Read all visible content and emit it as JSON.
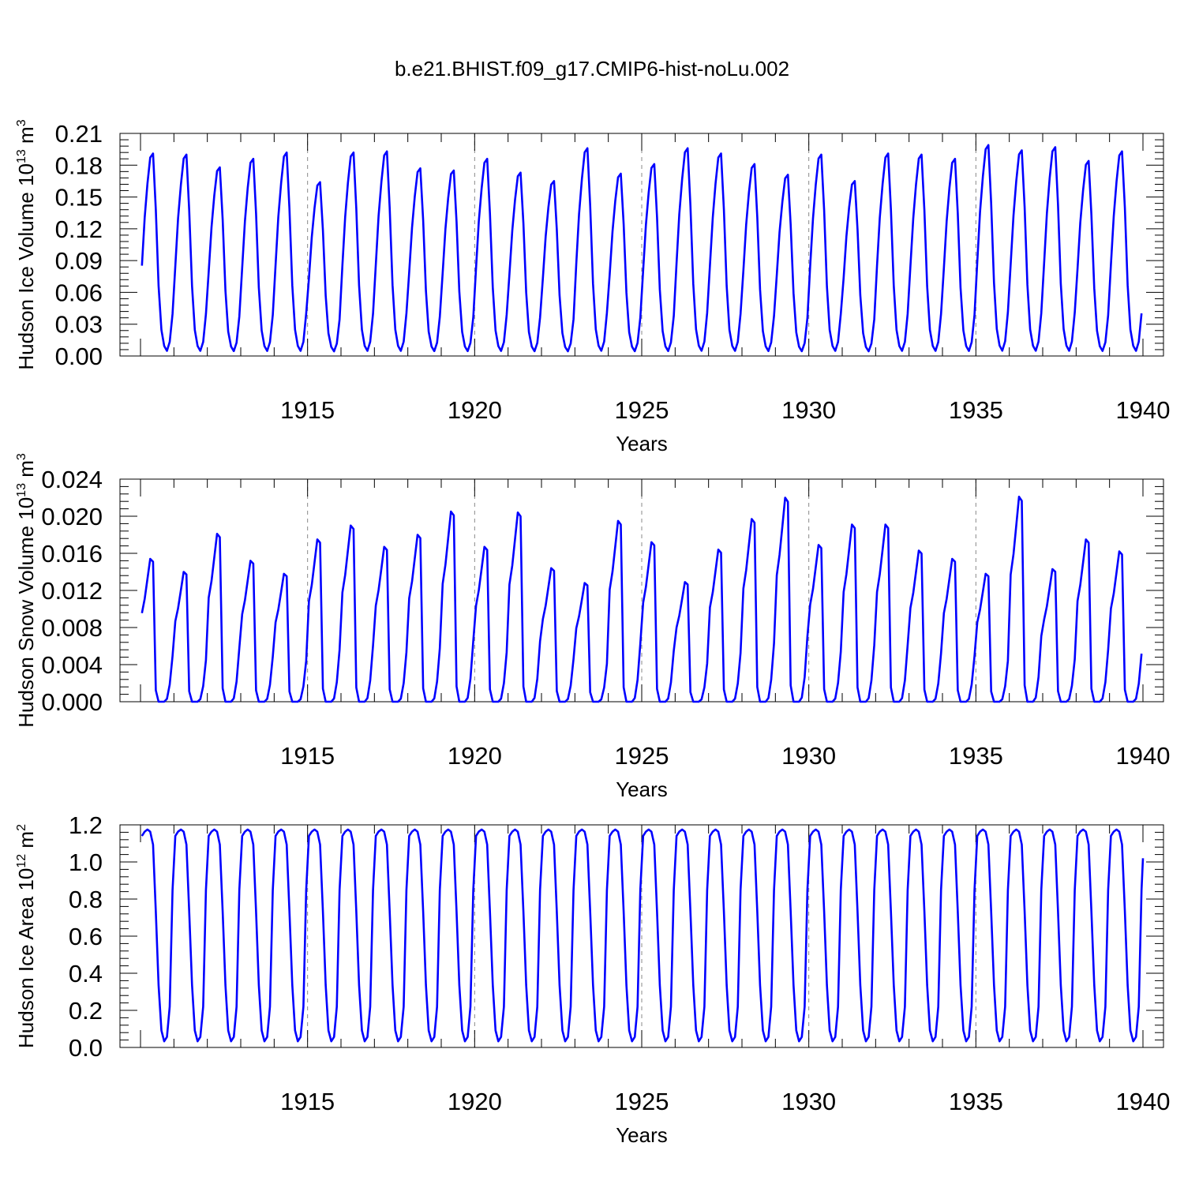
{
  "title": "b.e21.BHIST.f09_g17.CMIP6-hist-noLu.002",
  "colors": {
    "line": "#0000ff",
    "axes": "#000000",
    "grid": "#888888"
  },
  "chart_data": [
    {
      "type": "line",
      "ylabel": {
        "main": "Hudson Ice Volume 10",
        "exp": "13",
        "unit": " m",
        "unit_exp": "3"
      },
      "xlabel": "Years",
      "xlim": [
        1910.0,
        1940.0
      ],
      "ylim": [
        0.0,
        0.21
      ],
      "yticks": [
        "0.00",
        "0.03",
        "0.06",
        "0.09",
        "0.12",
        "0.15",
        "0.18",
        "0.21"
      ],
      "xticks": [
        "1915",
        "1920",
        "1925",
        "1930",
        "1935",
        "1940"
      ],
      "grid_x": "dashed verticals at 1915, 1920, 1925, 1930, 1935",
      "annual_minimum": 0.002,
      "annual_peaks": [
        0.191,
        0.19,
        0.178,
        0.186,
        0.192,
        0.164,
        0.192,
        0.193,
        0.177,
        0.175,
        0.186,
        0.173,
        0.165,
        0.196,
        0.172,
        0.181,
        0.196,
        0.191,
        0.181,
        0.171,
        0.19,
        0.165,
        0.191,
        0.19,
        0.186,
        0.199,
        0.194,
        0.197,
        0.184,
        0.193
      ],
      "series": [
        {
          "values_note": "monthly seasonal cycle 1910-1940"
        }
      ]
    },
    {
      "type": "line",
      "ylabel": {
        "main": "Hudson Snow Volume 10",
        "exp": "13",
        "unit": " m",
        "unit_exp": "3"
      },
      "xlabel": "Years",
      "xlim": [
        1910.0,
        1940.0
      ],
      "ylim": [
        0.0,
        0.024
      ],
      "yticks": [
        "0.000",
        "0.004",
        "0.008",
        "0.012",
        "0.016",
        "0.020",
        "0.024"
      ],
      "xticks": [
        "1915",
        "1920",
        "1925",
        "1930",
        "1935",
        "1940"
      ],
      "grid_x": "dashed verticals at 1915, 1920, 1925, 1930, 1935",
      "annual_minimum": 0.0,
      "annual_peaks": [
        0.0154,
        0.014,
        0.0181,
        0.0152,
        0.0138,
        0.0175,
        0.019,
        0.0167,
        0.018,
        0.0205,
        0.0167,
        0.0204,
        0.0144,
        0.0128,
        0.0195,
        0.0172,
        0.0129,
        0.0164,
        0.0197,
        0.022,
        0.0169,
        0.0191,
        0.0191,
        0.0163,
        0.0154,
        0.0138,
        0.0221,
        0.0143,
        0.0175,
        0.0162
      ]
    },
    {
      "type": "line",
      "ylabel": {
        "main": "Hudson Ice Area 10",
        "exp": "12",
        "unit": " m",
        "unit_exp": "2"
      },
      "xlabel": "Years",
      "xlim": [
        1910.0,
        1940.0
      ],
      "ylim": [
        0.0,
        1.2
      ],
      "yticks": [
        "0.0",
        "0.2",
        "0.4",
        "0.6",
        "0.8",
        "1.0",
        "1.2"
      ],
      "xticks": [
        "1915",
        "1920",
        "1925",
        "1930",
        "1935",
        "1940"
      ],
      "grid_x": "dashed verticals at 1915, 1920, 1925, 1930, 1935",
      "annual_minimum": 0.01,
      "annual_peaks": [
        1.175,
        1.175,
        1.175,
        1.175,
        1.175,
        1.175,
        1.175,
        1.175,
        1.175,
        1.175,
        1.175,
        1.175,
        1.175,
        1.175,
        1.175,
        1.175,
        1.175,
        1.175,
        1.175,
        1.175,
        1.175,
        1.175,
        1.175,
        1.175,
        1.175,
        1.175,
        1.175,
        1.175,
        1.175,
        1.175
      ],
      "series_end_value": 1.02
    }
  ]
}
